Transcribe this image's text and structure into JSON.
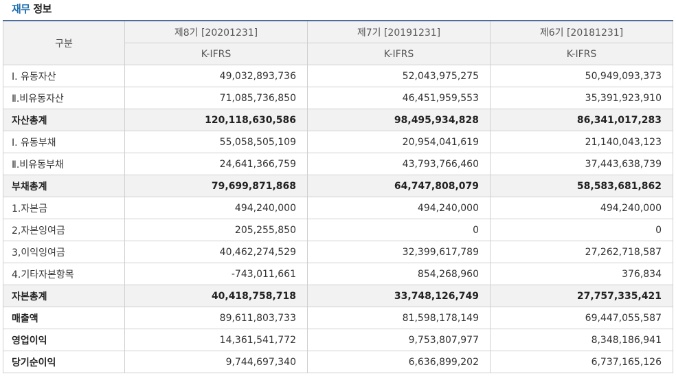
{
  "title": {
    "accent": "재무",
    "rest": " 정보"
  },
  "header": {
    "category": "구분",
    "periods": [
      "제8기 [20201231]",
      "제7기 [20191231]",
      "제6기 [20181231]"
    ],
    "standards": [
      "K-IFRS",
      "K-IFRS",
      "K-IFRS"
    ]
  },
  "rows": [
    {
      "label": "Ⅰ. 유동자산",
      "values": [
        "49,032,893,736",
        "52,043,975,275",
        "50,949,093,373"
      ]
    },
    {
      "label": "Ⅱ.비유동자산",
      "values": [
        "71,085,736,850",
        "46,451,959,553",
        "35,391,923,910"
      ]
    },
    {
      "label": "자산총계",
      "values": [
        "120,118,630,586",
        "98,495,934,828",
        "86,341,017,283"
      ]
    },
    {
      "label": "Ⅰ. 유동부채",
      "values": [
        "55,058,505,109",
        "20,954,041,619",
        "21,140,043,123"
      ]
    },
    {
      "label": "Ⅱ.비유동부채",
      "values": [
        "24,641,366,759",
        "43,793,766,460",
        "37,443,638,739"
      ]
    },
    {
      "label": "부채총계",
      "values": [
        "79,699,871,868",
        "64,747,808,079",
        "58,583,681,862"
      ]
    },
    {
      "label": "1.자본금",
      "values": [
        "494,240,000",
        "494,240,000",
        "494,240,000"
      ]
    },
    {
      "label": "2,자본잉여금",
      "values": [
        "205,255,850",
        "0",
        "0"
      ]
    },
    {
      "label": "3,이익잉여금",
      "values": [
        "40,462,274,529",
        "32,399,617,789",
        "27,262,718,587"
      ]
    },
    {
      "label": "4.기타자본항목",
      "values": [
        "-743,011,661",
        "854,268,960",
        "376,834"
      ]
    },
    {
      "label": "자본총계",
      "values": [
        "40,418,758,718",
        "33,748,126,749",
        "27,757,335,421"
      ]
    },
    {
      "label": "매출액",
      "values": [
        "89,611,803,733",
        "81,598,178,149",
        "69,447,055,587"
      ]
    },
    {
      "label": "영업이익",
      "values": [
        "14,361,541,772",
        "9,753,807,977",
        "8,348,186,941"
      ]
    },
    {
      "label": "당기순이익",
      "values": [
        "9,744,697,340",
        "6,636,899,202",
        "6,737,165,126"
      ]
    }
  ]
}
